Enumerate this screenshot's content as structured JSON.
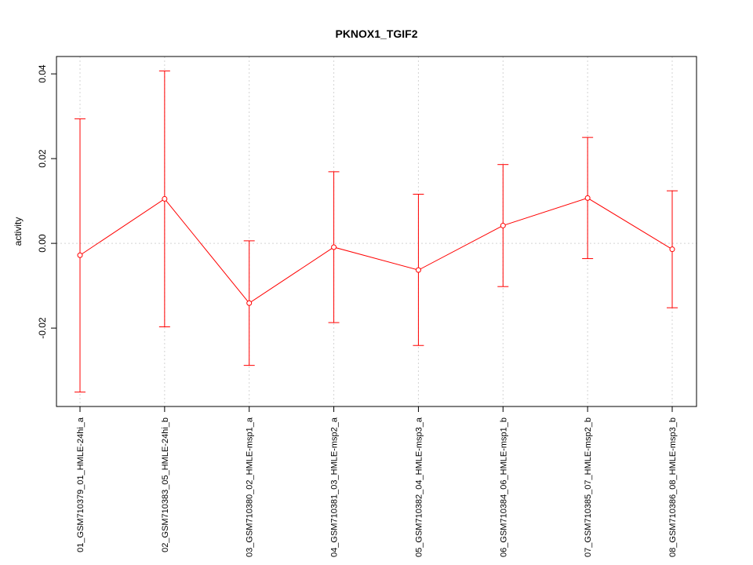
{
  "chart_data": {
    "type": "line",
    "title": "PKNOX1_TGIF2",
    "xlabel": "",
    "ylabel": "activity",
    "categories": [
      "01_GSM710379_01_HMLE-24hi_a",
      "02_GSM710383_05_HMLE-24hi_b",
      "03_GSM710380_02_HMLE-msp1_a",
      "04_GSM710381_03_HMLE-msp2_a",
      "05_GSM710382_04_HMLE-msp3_a",
      "06_GSM710384_06_HMLE-msp1_b",
      "07_GSM710385_07_HMLE-msp2_b",
      "08_GSM710386_08_HMLE-msp3_b"
    ],
    "series": [
      {
        "values": [
          -0.0028,
          0.0105,
          -0.0141,
          -0.0009,
          -0.0063,
          0.0042,
          0.0107,
          -0.0014
        ],
        "error_upper": [
          0.0294,
          0.0407,
          0.0006,
          0.0169,
          0.0116,
          0.0186,
          0.025,
          0.0124
        ],
        "error_lower": [
          -0.0351,
          -0.0197,
          -0.0288,
          -0.0187,
          -0.0241,
          -0.0102,
          -0.0036,
          -0.0152
        ],
        "color": "#ff0000"
      }
    ],
    "yticks": [
      -0.02,
      0.0,
      0.02,
      0.04
    ],
    "ytick_labels": [
      "-0.02",
      "0.00",
      "0.02",
      "0.04"
    ],
    "ylim": [
      -0.0385,
      0.0441
    ],
    "grid": true,
    "grid_color": "#d3d3d3"
  }
}
